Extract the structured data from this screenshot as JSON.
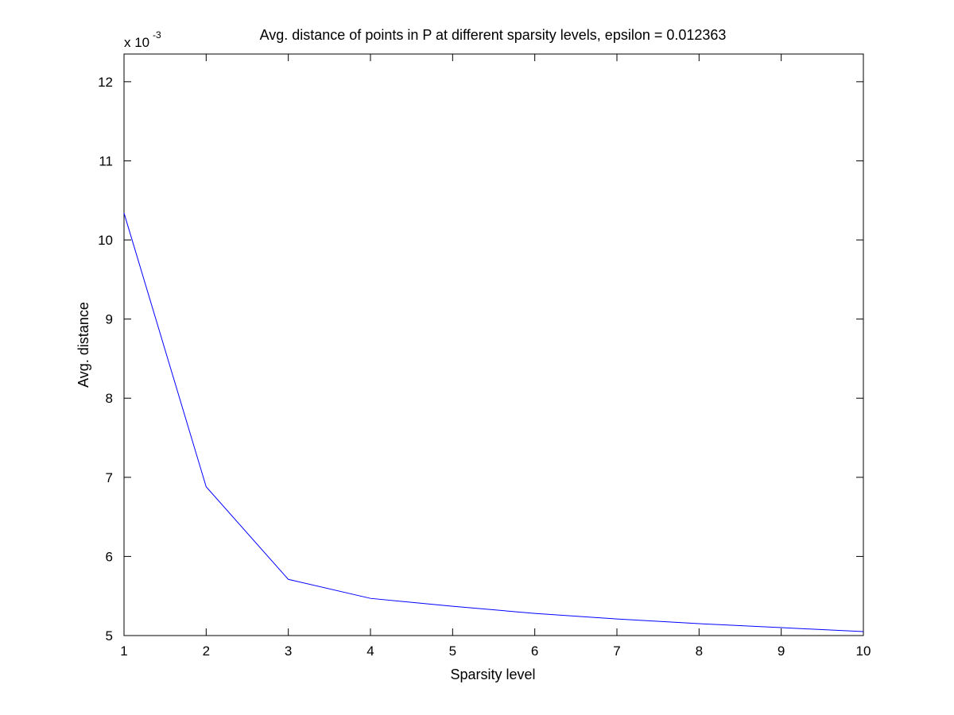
{
  "chart_data": {
    "type": "line",
    "title": "Avg. distance of points in P at different sparsity levels, epsilon = 0.012363",
    "xlabel": "Sparsity level",
    "ylabel": "Avg. distance",
    "y_exponent_label": "x 10",
    "y_exponent_power": "-3",
    "xlim": [
      1,
      10
    ],
    "ylim": [
      5,
      12.35
    ],
    "xticks": [
      "1",
      "2",
      "3",
      "4",
      "5",
      "6",
      "7",
      "8",
      "9",
      "10"
    ],
    "yticks": [
      "5",
      "6",
      "7",
      "8",
      "9",
      "10",
      "11",
      "12"
    ],
    "grid": false,
    "series": [
      {
        "color": "#0000ff",
        "x": [
          1,
          2,
          3,
          4,
          5,
          6,
          7,
          8,
          9,
          10
        ],
        "y": [
          10.34,
          6.88,
          5.71,
          5.47,
          5.37,
          5.28,
          5.21,
          5.15,
          5.1,
          5.05
        ]
      }
    ]
  }
}
